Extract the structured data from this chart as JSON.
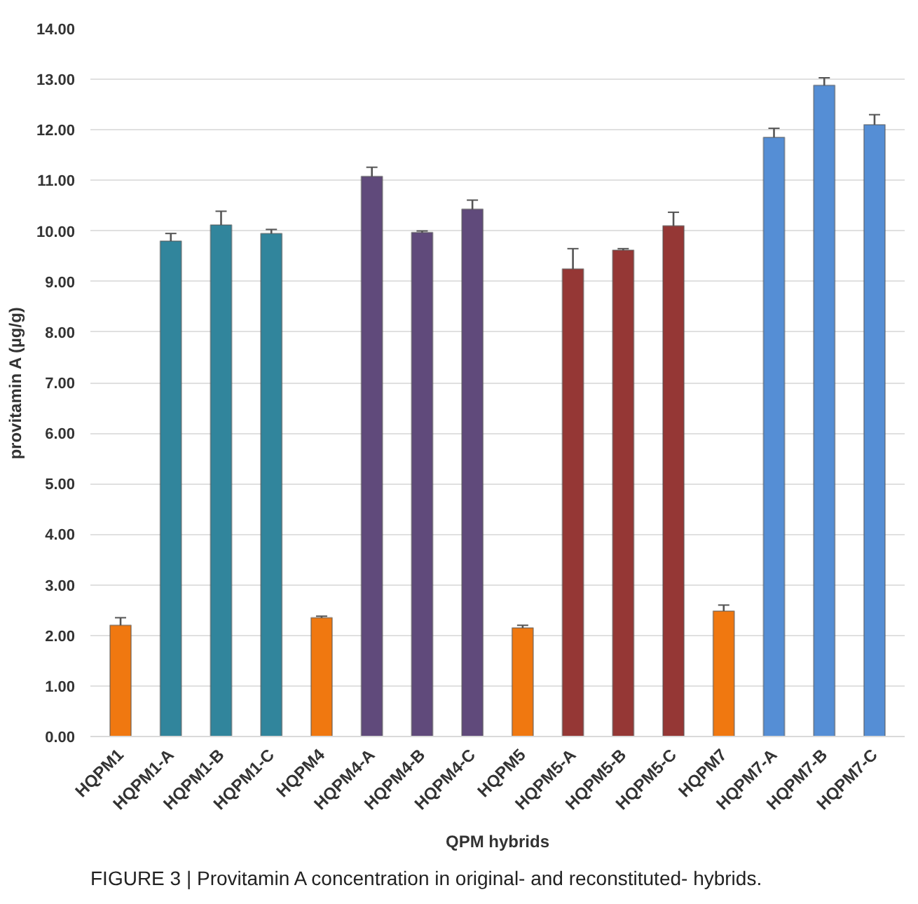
{
  "chart_data": {
    "type": "bar",
    "xlabel": "QPM hybrids",
    "ylabel": "provitamin A (µg/g)",
    "categories": [
      "HQPM1",
      "HQPM1-A",
      "HQPM1-B",
      "HQPM1-C",
      "HQPM4",
      "HQPM4-A",
      "HQPM4-B",
      "HQPM4-C",
      "HQPM5",
      "HQPM5-A",
      "HQPM5-B",
      "HQPM5-C",
      "HQPM7",
      "HQPM7-A",
      "HQPM7-B",
      "HQPM7-C"
    ],
    "values": [
      2.2,
      9.8,
      10.12,
      9.95,
      2.35,
      11.08,
      9.97,
      10.43,
      2.15,
      9.25,
      9.62,
      10.1,
      2.48,
      11.85,
      12.88,
      12.1
    ],
    "errors": [
      0.15,
      0.15,
      0.27,
      0.08,
      0.03,
      0.18,
      0.03,
      0.18,
      0.05,
      0.4,
      0.03,
      0.27,
      0.12,
      0.18,
      0.15,
      0.2
    ],
    "colors": [
      "#f07810",
      "#31859c",
      "#31859c",
      "#31859c",
      "#f07810",
      "#604a7b",
      "#604a7b",
      "#604a7b",
      "#f07810",
      "#953735",
      "#953735",
      "#953735",
      "#f07810",
      "#558ed5",
      "#558ed5",
      "#558ed5"
    ],
    "ylim": [
      0,
      14
    ],
    "yticks": [
      {
        "value": 0,
        "label": "0.00"
      },
      {
        "value": 1,
        "label": "1.00"
      },
      {
        "value": 2,
        "label": "2.00"
      },
      {
        "value": 3,
        "label": "3.00"
      },
      {
        "value": 4,
        "label": "4.00"
      },
      {
        "value": 5,
        "label": "5.00"
      },
      {
        "value": 6,
        "label": "6.00"
      },
      {
        "value": 7,
        "label": "7.00"
      },
      {
        "value": 8,
        "label": "8.00"
      },
      {
        "value": 9,
        "label": "9.00"
      },
      {
        "value": 10,
        "label": "10.00"
      },
      {
        "value": 11,
        "label": "11.00"
      },
      {
        "value": 12,
        "label": "12.00"
      },
      {
        "value": 13,
        "label": "13.00"
      },
      {
        "value": 14,
        "label": "14.00"
      }
    ],
    "grid": "y",
    "annotations": [
      "FIGURE 3 | Provitamin A concentration in original- and reconstituted- hybrids."
    ]
  }
}
